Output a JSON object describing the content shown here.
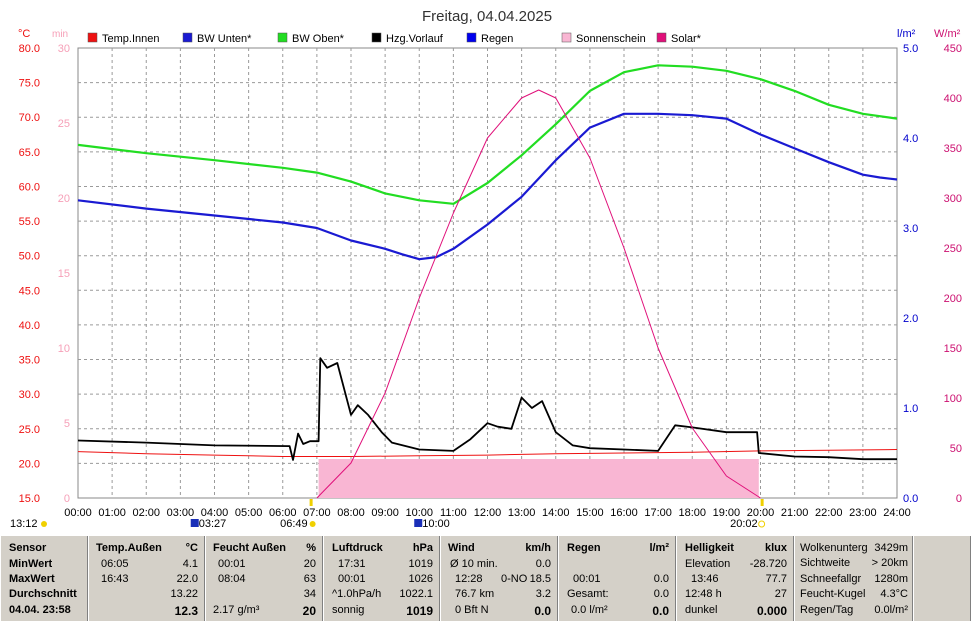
{
  "title": "Freitag, 04.04.2025",
  "units": {
    "left1": "°C",
    "left2": "min",
    "right1": "l/m²",
    "right2": "W/m²"
  },
  "legend": [
    {
      "label": "Temp.Innen",
      "color": "#ee1111"
    },
    {
      "label": "BW Unten*",
      "color": "#1a1ad2"
    },
    {
      "label": "BW Oben*",
      "color": "#22dd22"
    },
    {
      "label": "Hzg.Vorlauf",
      "color": "#000000"
    },
    {
      "label": "Regen",
      "color": "#0000ee"
    },
    {
      "label": "Sonnenschein",
      "color": "#f9b6d3"
    },
    {
      "label": "Solar*",
      "color": "#e0107a"
    }
  ],
  "axis_ticks": {
    "temp": [
      "15.0",
      "20.0",
      "25.0",
      "30.0",
      "35.0",
      "40.0",
      "45.0",
      "50.0",
      "55.0",
      "60.0",
      "65.0",
      "70.0",
      "75.0",
      "80.0"
    ],
    "minutes": [
      "0",
      "5",
      "10",
      "15",
      "20",
      "25",
      "30"
    ],
    "rain": [
      "0.0",
      "1.0",
      "2.0",
      "3.0",
      "4.0",
      "5.0"
    ],
    "solar": [
      "0",
      "50",
      "100",
      "150",
      "200",
      "250",
      "300",
      "350",
      "400",
      "450"
    ],
    "time": [
      "00:00",
      "01:00",
      "02:00",
      "03:00",
      "04:00",
      "05:00",
      "06:00",
      "07:00",
      "08:00",
      "09:00",
      "10:00",
      "11:00",
      "12:00",
      "13:00",
      "14:00",
      "15:00",
      "16:00",
      "17:00",
      "18:00",
      "19:00",
      "20:00",
      "21:00",
      "22:00",
      "23:00",
      "24:00"
    ]
  },
  "markers": {
    "left": "13:12",
    "moonset": "03:27",
    "sunrise": "06:49",
    "moonphase": "10:00",
    "sunset": "20:02"
  },
  "chart_data": {
    "type": "line",
    "title": "Freitag, 04.04.2025",
    "x_range": [
      "00:00",
      "24:00"
    ],
    "ylim_temp": [
      15,
      80
    ],
    "ylim_minutes": [
      0,
      30
    ],
    "ylim_rain": [
      0,
      5
    ],
    "ylim_solar": [
      0,
      450
    ],
    "grid": true,
    "legend_position": "top",
    "series": [
      {
        "name": "Temp.Innen",
        "axis": "temp",
        "color": "#ee1111",
        "x": [
          0,
          2,
          4,
          6,
          8,
          10,
          12,
          14,
          16,
          18,
          20,
          22,
          24
        ],
        "y": [
          21.7,
          21.4,
          21.2,
          21.0,
          21.0,
          21.1,
          21.2,
          21.4,
          21.5,
          21.6,
          21.8,
          21.9,
          22.0
        ]
      },
      {
        "name": "BW Unten*",
        "axis": "temp",
        "color": "#1a1ad2",
        "x": [
          0,
          2,
          4,
          6,
          7,
          8,
          9,
          9.5,
          10,
          10.5,
          11,
          12,
          13,
          14,
          15,
          16,
          17,
          18,
          19,
          20,
          21,
          22,
          23,
          23.5,
          24
        ],
        "y": [
          58,
          56.8,
          55.8,
          54.8,
          54,
          52.2,
          51,
          50.2,
          49.5,
          49.8,
          51,
          54.5,
          58.5,
          63.8,
          68.5,
          70.5,
          70.5,
          70.3,
          69.8,
          67.5,
          65.5,
          63.5,
          61.7,
          61.3,
          61
        ]
      },
      {
        "name": "BW Oben*",
        "axis": "temp",
        "color": "#22dd22",
        "x": [
          0,
          2,
          4,
          6,
          7,
          8,
          9,
          10,
          11,
          12,
          13,
          14,
          15,
          16,
          17,
          18,
          19,
          20,
          21,
          22,
          23,
          24
        ],
        "y": [
          66,
          64.8,
          63.8,
          62.7,
          62,
          60.7,
          59,
          58,
          57.5,
          60.5,
          64.5,
          69,
          73.8,
          76.5,
          77.5,
          77.3,
          76.7,
          75.5,
          73.8,
          71.8,
          70.5,
          69.8
        ]
      },
      {
        "name": "Hzg.Vorlauf",
        "axis": "temp",
        "color": "#000000",
        "x": [
          0,
          2,
          4,
          6.2,
          6.3,
          6.45,
          6.6,
          6.8,
          7.05,
          7.1,
          7.3,
          7.6,
          8,
          8.2,
          8.5,
          8.9,
          9.2,
          10,
          11,
          11.5,
          12,
          12.3,
          12.7,
          13,
          13.3,
          13.6,
          14,
          14.5,
          15,
          16,
          17,
          17.5,
          18,
          19,
          19.9,
          19.95,
          21,
          22,
          23,
          24
        ],
        "y": [
          23.3,
          23.0,
          22.6,
          22.5,
          20.5,
          24.3,
          22.8,
          23.2,
          23.2,
          35.2,
          33.8,
          34.5,
          27,
          28.4,
          27,
          24.5,
          23,
          22,
          21.8,
          23.5,
          25.8,
          25.3,
          25,
          29.5,
          28,
          29,
          24.5,
          22.6,
          22.2,
          22,
          21.8,
          25.5,
          25.2,
          24.5,
          24.5,
          21.5,
          21.0,
          20.9,
          20.6,
          20.6
        ]
      },
      {
        "name": "Solar*",
        "axis": "solar",
        "color": "#e0107a",
        "x": [
          7,
          8,
          9,
          10,
          11,
          12,
          13,
          13.5,
          14,
          15,
          16,
          17,
          18,
          19,
          20
        ],
        "y": [
          0,
          35,
          105,
          200,
          285,
          360,
          400,
          408,
          400,
          340,
          250,
          150,
          70,
          22,
          0
        ]
      },
      {
        "name": "Sonnenschein",
        "axis": "minutes",
        "color": "#f9b6d3",
        "x": [
          7.05,
          19.95
        ],
        "y": [
          2.6,
          2.6
        ]
      },
      {
        "name": "Regen",
        "axis": "rain",
        "color": "#0000ee",
        "x": [
          0,
          24
        ],
        "y": [
          0,
          0
        ]
      }
    ]
  },
  "table": {
    "sensor": {
      "header": "Sensor",
      "rows": [
        "MinWert",
        "MaxWert",
        "Durchschnitt",
        "04.04. 23:58"
      ]
    },
    "temp": {
      "header": "Temp.Außen",
      "unit": "°C",
      "rows": [
        [
          "06:05",
          "4.1"
        ],
        [
          "16:43",
          "22.0"
        ],
        [
          "",
          "13.22"
        ],
        [
          "",
          "12.3"
        ]
      ]
    },
    "feucht": {
      "header": "Feucht Außen",
      "unit": "%",
      "rows": [
        [
          "00:01",
          "20"
        ],
        [
          "08:04",
          "63"
        ],
        [
          "",
          "34"
        ],
        [
          "2.17 g/m³",
          "20"
        ]
      ]
    },
    "druck": {
      "header": "Luftdruck",
      "unit": "hPa",
      "rows": [
        [
          "17:31",
          "1019"
        ],
        [
          "00:01",
          "1026"
        ],
        [
          "^1.0hPa/h",
          "1022.1"
        ],
        [
          "sonnig",
          "1019"
        ]
      ]
    },
    "wind": {
      "header": "Wind",
      "unit": "km/h",
      "rows": [
        [
          "Ø 10 min.",
          "",
          "0.0"
        ],
        [
          "12:28",
          "0-NO",
          "18.5"
        ],
        [
          "76.7 km",
          "",
          "3.2"
        ],
        [
          "0 Bft N",
          "",
          "0.0"
        ]
      ]
    },
    "regen": {
      "header": "Regen",
      "unit": "l/m²",
      "rows": [
        [
          "",
          ""
        ],
        [
          "00:01",
          "0.0"
        ],
        [
          "Gesamt:",
          "0.0"
        ],
        [
          "0.0 l/m²",
          "0.0"
        ]
      ]
    },
    "hell": {
      "header": "Helligkeit",
      "unit": "klux",
      "rows": [
        [
          "Elevation",
          "-28.720"
        ],
        [
          "13:46",
          "77.7"
        ],
        [
          "12:48 h",
          "27"
        ],
        [
          "dunkel",
          "0.000"
        ]
      ]
    },
    "extra": {
      "rows": [
        [
          "Wolkenunterg",
          "3429m"
        ],
        [
          "Sichtweite",
          "> 20km"
        ],
        [
          "Schneefallgr",
          "1280m"
        ],
        [
          "Feucht-Kugel",
          "4.3°C"
        ],
        [
          "Regen/Tag",
          "0.0l/m²"
        ]
      ]
    }
  }
}
